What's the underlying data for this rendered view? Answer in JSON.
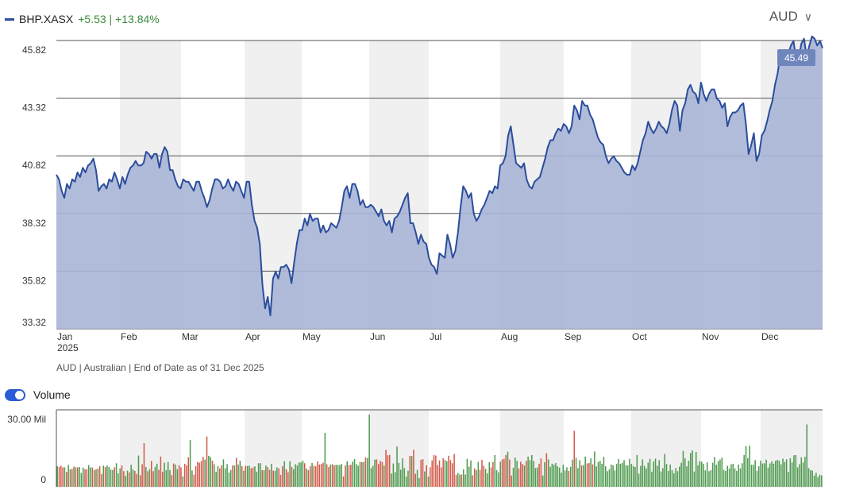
{
  "header": {
    "ticker": "BHP.XASX",
    "change": "+5.53 | +13.84%",
    "currency": "AUD",
    "currency_chevron": "chevron-down-icon"
  },
  "footnote": "AUD | Australian | End of Date as of 31 Dec 2025",
  "volume_toggle": {
    "label": "Volume",
    "on": true
  },
  "colors": {
    "line": "#2b4d9c",
    "area": "#a7b5d5",
    "up": "#4f9a4f",
    "down": "#d25a4a",
    "band": "#f0f0f0"
  },
  "chart_data": [
    {
      "type": "area",
      "series_name": "BHP.XASX",
      "x_axis_labels": [
        "Jan",
        "Feb",
        "Mar",
        "Apr",
        "May",
        "Jun",
        "Jul",
        "Aug",
        "Sep",
        "Oct",
        "Nov",
        "Dec"
      ],
      "x_axis_sublabel": "2025",
      "y_ticks": [
        "45.82",
        "43.32",
        "40.82",
        "38.32",
        "35.82",
        "33.32"
      ],
      "ylim": [
        33.32,
        45.82
      ],
      "last_value_label": "45.49",
      "grid": true,
      "values": [
        40.0,
        39.8,
        39.3,
        39.0,
        39.6,
        39.4,
        39.8,
        39.7,
        40.1,
        39.9,
        40.3,
        40.1,
        40.4,
        40.5,
        40.7,
        40.2,
        39.3,
        39.5,
        39.6,
        39.4,
        39.8,
        39.7,
        40.1,
        39.8,
        39.4,
        39.9,
        39.6,
        40.0,
        40.3,
        40.4,
        40.6,
        40.4,
        40.4,
        40.5,
        41.0,
        40.9,
        40.7,
        40.9,
        40.9,
        40.3,
        40.9,
        41.2,
        41.0,
        40.2,
        40.2,
        39.8,
        39.5,
        39.4,
        39.8,
        39.7,
        39.7,
        39.5,
        39.3,
        39.7,
        39.7,
        39.3,
        39.0,
        38.6,
        38.9,
        39.4,
        39.8,
        39.8,
        39.7,
        39.4,
        39.5,
        39.8,
        39.5,
        39.3,
        39.7,
        39.6,
        39.3,
        39.0,
        39.7,
        39.7,
        38.7,
        38.0,
        37.7,
        37.0,
        35.2,
        34.2,
        34.7,
        33.9,
        35.5,
        35.8,
        35.5,
        36.0,
        36.0,
        36.1,
        35.9,
        35.3,
        36.2,
        37.0,
        37.6,
        37.6,
        38.1,
        37.8,
        38.3,
        38.0,
        38.1,
        38.1,
        37.5,
        37.8,
        37.5,
        37.6,
        37.9,
        37.8,
        37.7,
        38.0,
        38.6,
        39.3,
        39.5,
        39.0,
        39.6,
        39.6,
        39.3,
        38.7,
        38.9,
        38.6,
        38.6,
        38.7,
        38.6,
        38.4,
        38.2,
        38.5,
        38.0,
        37.8,
        38.0,
        37.5,
        38.1,
        38.2,
        38.4,
        38.7,
        39.0,
        39.2,
        37.9,
        37.9,
        37.5,
        37.0,
        37.4,
        37.1,
        37.0,
        36.4,
        36.1,
        36.0,
        35.7,
        36.6,
        36.5,
        36.4,
        37.4,
        37.0,
        36.4,
        36.7,
        37.5,
        38.6,
        39.5,
        39.3,
        39.0,
        39.2,
        38.3,
        38.0,
        38.2,
        38.5,
        38.7,
        39.0,
        39.3,
        39.2,
        39.5,
        39.4,
        40.4,
        40.5,
        40.8,
        41.7,
        42.1,
        41.3,
        40.5,
        40.4,
        40.3,
        40.5,
        39.8,
        39.5,
        39.4,
        39.7,
        39.8,
        39.9,
        40.3,
        40.7,
        41.2,
        41.5,
        41.5,
        41.8,
        42.0,
        41.9,
        42.2,
        42.1,
        41.8,
        42.1,
        43.0,
        42.8,
        42.4,
        43.2,
        43.0,
        43.0,
        42.6,
        42.4,
        42.0,
        41.6,
        41.4,
        41.3,
        40.8,
        40.5,
        40.7,
        40.8,
        40.6,
        40.5,
        40.3,
        40.1,
        40.0,
        40.0,
        40.4,
        40.2,
        40.5,
        41.0,
        41.5,
        41.8,
        42.3,
        42.0,
        41.8,
        42.0,
        42.3,
        42.1,
        42.0,
        41.8,
        42.2,
        42.8,
        43.2,
        43.0,
        41.9,
        42.8,
        43.1,
        43.7,
        43.9,
        43.6,
        43.5,
        43.1,
        44.0,
        43.5,
        43.2,
        43.5,
        43.7,
        43.7,
        43.3,
        43.2,
        42.9,
        43.1,
        42.1,
        42.5,
        42.7,
        42.7,
        42.8,
        43.0,
        43.1,
        42.2,
        40.9,
        41.3,
        41.8,
        40.6,
        40.9,
        41.7,
        41.9,
        42.3,
        42.8,
        43.2,
        43.9,
        44.4,
        45.2,
        45.4,
        45.4,
        45.2,
        45.6,
        45.8,
        45.0,
        45.1,
        45.7,
        45.9,
        45.1,
        45.6,
        46.0,
        45.9,
        45.6,
        45.8,
        45.49
      ]
    },
    {
      "type": "bar",
      "series_name": "Volume",
      "y_ticks": [
        "30.00 Mil",
        "0"
      ],
      "ylim": [
        0,
        30
      ],
      "unit": "Mil",
      "note": "bars colored green on up days and red on down days",
      "values": [
        8.0,
        7.8,
        8.2,
        7.6,
        7.6,
        5.8,
        8.5,
        6.8,
        7.0,
        7.9,
        7.6,
        7.6,
        7.7,
        5.4,
        7.5,
        6.8,
        6.8,
        8.5,
        7.6,
        7.5,
        6.5,
        6.8,
        7.1,
        8.0,
        5.0,
        8.3,
        7.7,
        8.3,
        7.8,
        6.7,
        6.6,
        7.6,
        9.2,
        5.3,
        7.2,
        8.3,
        6.1,
        4.3,
        6.3,
        5.6,
        8.6,
        6.8,
        6.2,
        5.0,
        12.2,
        4.5,
        8.8,
        17.0,
        7.7,
        6.1,
        6.9,
        10.1,
        6.1,
        7.8,
        9.0,
        6.6,
        11.8,
        5.9,
        9.4,
        6.5,
        9.7,
        6.5,
        4.6,
        9.1,
        8.7,
        6.9,
        8.4,
        7.6,
        4.1,
        9.0,
        8.4,
        11.5,
        18.2,
        6.4,
        4.7,
        8.1,
        9.7,
        9.4,
        10.1,
        11.7,
        10.6,
        19.6,
        12.1,
        11.6,
        10.2,
        8.8,
        5.9,
        8.1,
        7.2,
        8.4,
        10.7,
        7.2,
        8.9,
        5.6,
        6.6,
        8.4,
        8.3,
        11.3,
        8.7,
        10.1,
        8.1,
        6.3,
        8.2,
        8.1,
        8.2,
        7.2,
        7.6,
        8.0,
        5.9,
        9.2,
        9.2,
        6.5,
        6.5,
        8.3,
        7.7,
        6.6,
        9.0,
        6.3,
        6.3,
        7.6,
        7.2,
        4.7,
        8.0,
        10.0,
        6.8,
        5.7,
        10.0,
        7.8,
        6.9,
        8.8,
        8.4,
        9.5,
        9.5,
        10.2,
        9.2,
        7.1,
        6.5,
        8.0,
        9.3,
        8.2,
        8.1,
        9.9,
        8.7,
        8.9,
        9.4,
        21.0,
        8.8,
        7.7,
        8.7,
        8.8,
        8.4,
        8.6,
        8.5,
        8.5,
        8.9,
        4.1,
        8.4,
        10.0,
        8.5,
        8.6,
        9.8,
        10.8,
        8.8,
        8.2,
        9.7,
        9.6,
        9.7,
        11.5,
        11.2,
        28.2,
        7.3,
        8.2,
        10.6,
        10.7,
        8.9,
        10.1,
        9.7,
        8.3,
        14.4,
        12.3,
        12.4,
        5.2,
        9.1,
        5.7,
        15.7,
        9.3,
        6.7,
        11.1,
        7.3,
        4.0,
        6.3,
        12.0,
        12.0,
        14.4,
        5.1,
        6.6,
        3.4,
        10.5,
        10.8,
        6.0,
        8.4,
        4.0,
        7.6,
        10.3,
        12.4,
        12.2,
        8.5,
        10.3,
        7.6,
        11.2,
        10.4,
        10.0,
        12.1,
        10.4,
        9.2,
        12.8,
        4.6,
        5.4,
        4.8,
        4.8,
        6.8,
        4.8,
        10.9,
        7.9,
        10.3,
        4.5,
        7.2,
        6.5,
        9.7,
        6.6,
        10.5,
        8.2,
        7.0,
        5.3,
        9.6,
        7.6,
        9.7,
        12.4,
        6.5,
        5.7,
        9.8,
        10.7,
        10.9,
        12.4,
        13.7,
        10.6,
        4.4,
        7.4,
        11.4,
        10.1,
        7.2,
        9.8,
        8.9,
        8.3,
        10.1,
        11.8,
        10.4,
        12.4,
        10.1,
        7.3,
        7.5,
        9.0,
        11.1,
        4.4,
        9.6,
        13.1,
        10.7,
        7.8,
        9.0,
        8.6,
        9.3,
        8.0,
        7.5,
        5.5,
        8.6,
        6.4,
        7.6,
        6.2,
        7.8,
        10.6,
        21.8,
        11.3,
        7.3,
        10.4,
        8.3,
        8.5,
        11.8,
        9.1,
        9.3,
        11.1,
        8.8,
        13.8,
        8.0,
        9.7,
        10.1,
        9.0,
        11.7,
        8.0,
        6.1,
        6.8,
        8.7,
        8.4,
        6.4,
        8.9,
        10.8,
        9.0,
        9.3,
        10.4,
        8.5,
        8.3,
        10.9,
        8.9,
        8.1,
        7.7,
        12.4,
        5.1,
        8.2,
        10.7,
        8.2,
        7.2,
        9.4,
        10.9,
        5.9,
        9.9,
        11.0,
        8.2,
        10.4,
        6.0,
        7.3,
        12.8,
        8.9,
        6.2,
        8.7,
        6.5,
        5.3,
        7.3,
        6.1,
        7.9,
        9.4,
        14.0,
        11.1,
        8.0,
        10.2,
        13.2,
        14.2,
        6.0,
        13.6,
        8.4,
        10.0,
        9.8,
        9.0,
        6.4,
        9.5,
        6.1,
        6.5,
        9.4,
        11.6,
        8.6,
        10.0,
        10.6,
        11.4,
        6.6,
        6.2,
        8.2,
        7.1,
        8.8,
        9.0,
        7.2,
        6.2,
        8.7,
        7.2,
        9.2,
        12.4,
        15.9,
        11.2,
        16.0,
        8.6,
        8.6,
        10.4,
        6.3,
        8.0,
        10.2,
        9.1,
        9.2,
        10.6,
        7.5,
        9.1,
        9.9,
        9.0,
        10.1,
        10.5,
        10.2,
        8.8,
        11.0,
        9.7,
        10.7,
        5.8,
        11.1,
        9.5,
        12.3,
        12.4,
        7.6,
        8.8,
        11.5,
        9.5,
        11.7,
        24.3,
        7.3,
        6.5,
        6.3,
        4.4,
        5.5,
        3.8,
        4.7,
        4.5
      ]
    }
  ]
}
